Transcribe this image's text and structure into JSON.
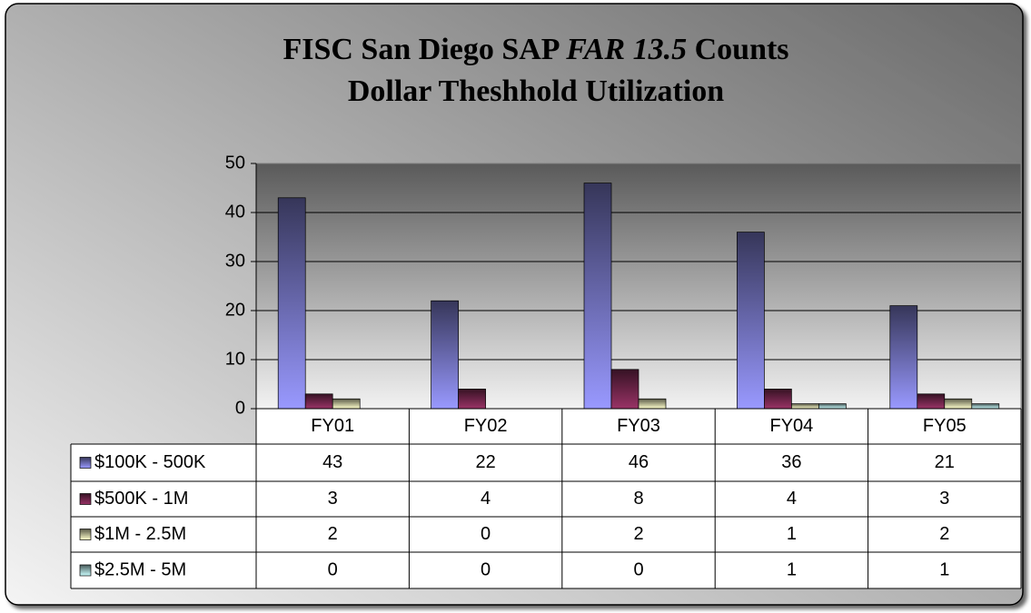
{
  "chart_data": {
    "type": "bar",
    "title": [
      "FISC San Diego SAP",
      "FAR 13.5",
      "Counts"
    ],
    "subtitle": "Dollar Theshhold Utilization",
    "categories": [
      "FY01",
      "FY02",
      "FY03",
      "FY04",
      "FY05"
    ],
    "series": [
      {
        "name": "$100K - 500K",
        "color": "#9999ff",
        "values": [
          43,
          22,
          46,
          36,
          21
        ]
      },
      {
        "name": "$500K - 1M",
        "color": "#993366",
        "values": [
          3,
          4,
          8,
          4,
          3
        ]
      },
      {
        "name": "$1M - 2.5M",
        "color": "#ffffcc",
        "values": [
          2,
          0,
          2,
          1,
          2
        ]
      },
      {
        "name": "$2.5M - 5M",
        "color": "#ccffff",
        "values": [
          0,
          0,
          0,
          1,
          1
        ]
      }
    ],
    "ylim": [
      0,
      50
    ],
    "yticks": [
      0,
      10,
      20,
      30,
      40,
      50
    ],
    "grid": true,
    "data_table": true
  }
}
